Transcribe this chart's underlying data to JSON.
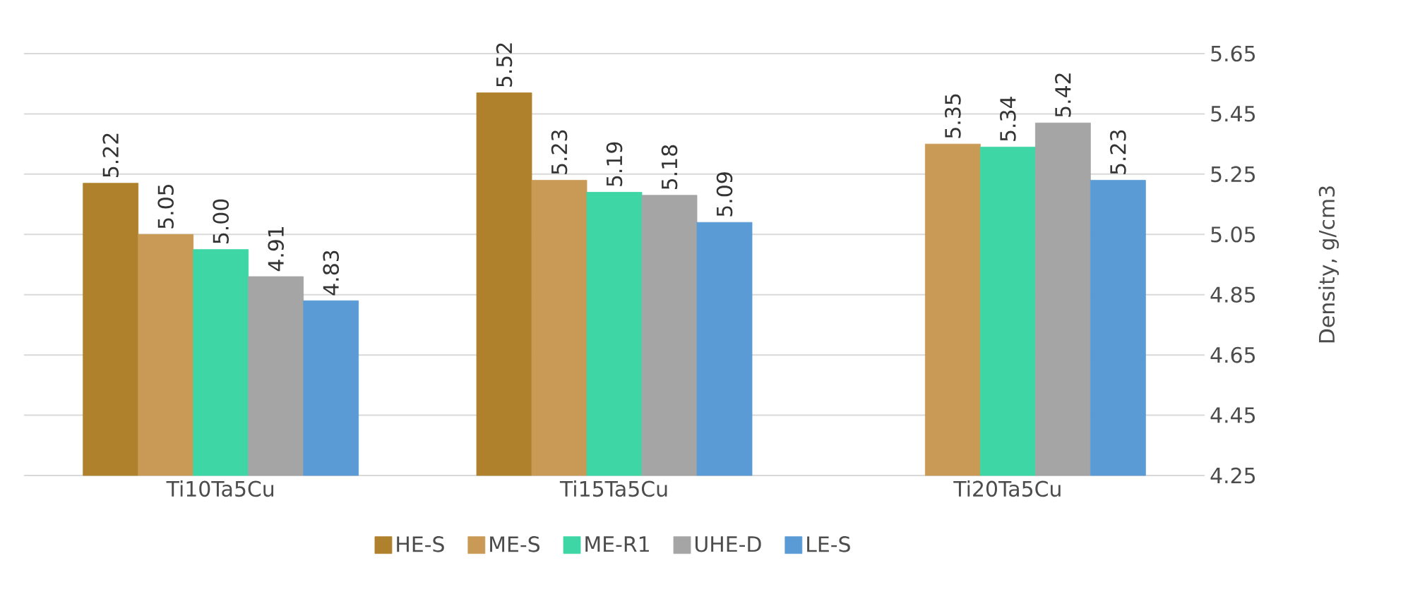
{
  "chart_data": {
    "type": "bar",
    "ylabel": "Density, g/cm3",
    "categories": [
      "Ti10Ta5Cu",
      "Ti15Ta5Cu",
      "Ti20Ta5Cu"
    ],
    "series": [
      {
        "name": "HE-S",
        "color": "#b0812c",
        "values": [
          5.22,
          5.52,
          null
        ],
        "value_labels": [
          "5.22",
          "5.52",
          null
        ]
      },
      {
        "name": "ME-S",
        "color": "#c99a55",
        "values": [
          5.05,
          5.23,
          5.35
        ],
        "value_labels": [
          "5.05",
          "5.23",
          "5.35"
        ]
      },
      {
        "name": "ME-R1",
        "color": "#3ed6a4",
        "values": [
          5.0,
          5.19,
          5.34
        ],
        "value_labels": [
          "5.00",
          "5.19",
          "5.34"
        ]
      },
      {
        "name": "UHE-D",
        "color": "#a5a5a5",
        "values": [
          4.91,
          5.18,
          5.42
        ],
        "value_labels": [
          "4.91",
          "5.18",
          "5.42"
        ]
      },
      {
        "name": "LE-S",
        "color": "#5b9bd5",
        "values": [
          4.83,
          5.09,
          5.23
        ],
        "value_labels": [
          "4.83",
          "5.09",
          "5.23"
        ]
      }
    ],
    "ylim": [
      4.25,
      5.65
    ],
    "yticks": [
      4.25,
      4.45,
      4.65,
      4.85,
      5.05,
      5.25,
      5.45,
      5.65
    ],
    "grid": "y",
    "legend": "bottom"
  }
}
